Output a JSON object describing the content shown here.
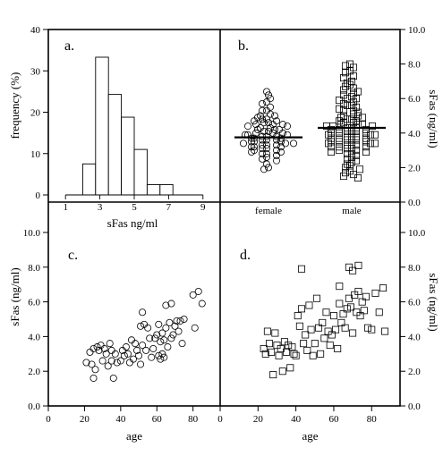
{
  "chart_data": [
    {
      "type": "bar",
      "panel_label": "a.",
      "xlabel": "sFas ng/ml",
      "ylabel": "frequency (%)",
      "xlim": [
        0,
        10
      ],
      "ylim": [
        0,
        40
      ],
      "xticks": [
        1,
        3,
        5,
        7,
        9
      ],
      "xtick_labels": [
        "1",
        "3",
        "5",
        "7",
        "9"
      ],
      "yticks": [
        0,
        10,
        20,
        30,
        40
      ],
      "ytick_labels": [
        "0",
        "10",
        "20",
        "30",
        "40"
      ],
      "bins": [
        [
          2,
          2.75
        ],
        [
          2.75,
          3.5
        ],
        [
          3.5,
          4.25
        ],
        [
          4.25,
          5
        ],
        [
          5,
          5.75
        ],
        [
          5.75,
          6.5
        ],
        [
          6.5,
          7.25
        ],
        [
          7.25,
          8
        ]
      ],
      "values": [
        7.5,
        33.3,
        24.3,
        18.8,
        11.0,
        2.5,
        2.5,
        0
      ],
      "grid": false
    },
    {
      "type": "scatter",
      "panel_label": "b.",
      "ylabel": "sFas (ng/ml)",
      "ylim": [
        0,
        10
      ],
      "yticks": [
        0,
        2,
        4,
        6,
        8,
        10
      ],
      "ytick_labels": [
        "0.0",
        "2.0",
        "4.0",
        "6.0",
        "8.0",
        "10.0"
      ],
      "categories": [
        "female",
        "male"
      ],
      "series": [
        {
          "category": "female",
          "marker": "circle",
          "mean": 3.75,
          "values": [
            6.4,
            6.2,
            6.0,
            5.8,
            5.7,
            5.5,
            5.3,
            5.3,
            5.1,
            5.0,
            5.0,
            4.9,
            4.8,
            4.8,
            4.7,
            4.7,
            4.6,
            4.6,
            4.5,
            4.5,
            4.5,
            4.4,
            4.4,
            4.3,
            4.3,
            4.2,
            4.2,
            4.2,
            4.1,
            4.1,
            4.0,
            4.0,
            4.0,
            3.9,
            3.9,
            3.9,
            3.8,
            3.8,
            3.8,
            3.7,
            3.7,
            3.7,
            3.6,
            3.6,
            3.6,
            3.5,
            3.5,
            3.5,
            3.4,
            3.4,
            3.4,
            3.3,
            3.3,
            3.3,
            3.2,
            3.2,
            3.2,
            3.1,
            3.1,
            3.0,
            3.0,
            2.9,
            2.9,
            2.8,
            2.8,
            2.7,
            2.6,
            2.5,
            2.4,
            2.2,
            2.0,
            1.9
          ]
        },
        {
          "category": "male",
          "marker": "square",
          "mean": 4.3,
          "values": [
            8.0,
            7.9,
            7.8,
            7.6,
            7.5,
            7.3,
            7.2,
            7.0,
            6.9,
            6.8,
            6.7,
            6.6,
            6.5,
            6.4,
            6.3,
            6.2,
            6.1,
            6.0,
            6.0,
            5.9,
            5.8,
            5.7,
            5.6,
            5.6,
            5.5,
            5.4,
            5.3,
            5.3,
            5.2,
            5.1,
            5.0,
            5.0,
            4.9,
            4.9,
            4.8,
            4.8,
            4.7,
            4.7,
            4.6,
            4.6,
            4.5,
            4.5,
            4.5,
            4.4,
            4.4,
            4.4,
            4.3,
            4.3,
            4.3,
            4.2,
            4.2,
            4.2,
            4.1,
            4.1,
            4.1,
            4.0,
            4.0,
            4.0,
            3.9,
            3.9,
            3.9,
            3.8,
            3.8,
            3.8,
            3.7,
            3.7,
            3.7,
            3.6,
            3.6,
            3.6,
            3.5,
            3.5,
            3.5,
            3.4,
            3.4,
            3.4,
            3.3,
            3.3,
            3.3,
            3.2,
            3.2,
            3.2,
            3.1,
            3.1,
            3.0,
            3.0,
            2.9,
            2.9,
            2.8,
            2.8,
            2.7,
            2.6,
            2.5,
            2.4,
            2.3,
            2.2,
            2.1,
            2.0,
            1.9,
            1.8,
            1.7,
            1.6,
            1.5,
            1.4
          ]
        }
      ],
      "grid": false
    },
    {
      "type": "scatter",
      "panel_label": "c.",
      "xlabel": "age",
      "ylabel": "sFas (ng/ml)",
      "marker": "circle",
      "xlim": [
        0,
        95
      ],
      "ylim": [
        0,
        10
      ],
      "xticks": [
        0,
        20,
        40,
        60,
        80
      ],
      "xtick_labels": [
        "0",
        "20",
        "40",
        "60",
        "80"
      ],
      "yticks": [
        0,
        2,
        4,
        6,
        8,
        10
      ],
      "ytick_labels": [
        "0.0",
        "2.0",
        "4.0",
        "6.0",
        "8.0",
        "10.0"
      ],
      "points": [
        [
          21,
          2.5
        ],
        [
          23,
          3.1
        ],
        [
          24,
          2.4
        ],
        [
          25,
          3.3
        ],
        [
          25,
          1.6
        ],
        [
          26,
          2.1
        ],
        [
          27,
          3.4
        ],
        [
          28,
          3.2
        ],
        [
          29,
          3.5
        ],
        [
          30,
          2.6
        ],
        [
          31,
          3.3
        ],
        [
          32,
          3.0
        ],
        [
          33,
          2.3
        ],
        [
          34,
          3.6
        ],
        [
          35,
          3.2
        ],
        [
          35,
          2.6
        ],
        [
          36,
          1.6
        ],
        [
          37,
          3.0
        ],
        [
          38,
          2.5
        ],
        [
          40,
          2.6
        ],
        [
          41,
          3.2
        ],
        [
          42,
          2.9
        ],
        [
          43,
          3.4
        ],
        [
          44,
          3.0
        ],
        [
          45,
          2.5
        ],
        [
          46,
          3.8
        ],
        [
          47,
          2.7
        ],
        [
          48,
          3.6
        ],
        [
          49,
          3.2
        ],
        [
          50,
          2.9
        ],
        [
          51,
          2.4
        ],
        [
          51,
          4.6
        ],
        [
          52,
          3.5
        ],
        [
          52,
          5.4
        ],
        [
          53,
          4.7
        ],
        [
          54,
          3.2
        ],
        [
          55,
          4.5
        ],
        [
          56,
          3.9
        ],
        [
          57,
          2.8
        ],
        [
          58,
          3.3
        ],
        [
          59,
          3.9
        ],
        [
          60,
          4.1
        ],
        [
          61,
          2.9
        ],
        [
          61,
          4.7
        ],
        [
          62,
          3.7
        ],
        [
          62,
          2.7
        ],
        [
          63,
          4.2
        ],
        [
          63,
          3.0
        ],
        [
          64,
          3.8
        ],
        [
          64,
          2.8
        ],
        [
          65,
          4.5
        ],
        [
          65,
          5.8
        ],
        [
          66,
          3.4
        ],
        [
          67,
          4.8
        ],
        [
          68,
          3.9
        ],
        [
          68,
          5.9
        ],
        [
          69,
          4.1
        ],
        [
          70,
          4.6
        ],
        [
          71,
          4.9
        ],
        [
          72,
          4.3
        ],
        [
          73,
          4.9
        ],
        [
          74,
          3.6
        ],
        [
          75,
          5.0
        ],
        [
          80,
          6.4
        ],
        [
          81,
          4.5
        ],
        [
          83,
          6.6
        ],
        [
          85,
          5.9
        ]
      ],
      "grid": false
    },
    {
      "type": "scatter",
      "panel_label": "d.",
      "xlabel": "age",
      "ylabel": "sFas (ng/ml)",
      "marker": "square",
      "xlim": [
        0,
        95
      ],
      "ylim": [
        0,
        10
      ],
      "xticks": [
        0,
        20,
        40,
        60,
        80
      ],
      "xtick_labels": [
        "0",
        "20",
        "40",
        "60",
        "80"
      ],
      "yticks": [
        0,
        2,
        4,
        6,
        8,
        10
      ],
      "ytick_labels": [
        "0.0",
        "2.0",
        "4.0",
        "6.0",
        "8.0",
        "10.0"
      ],
      "points": [
        [
          23,
          3.3
        ],
        [
          24,
          3.0
        ],
        [
          25,
          4.3
        ],
        [
          26,
          3.6
        ],
        [
          27,
          3.1
        ],
        [
          28,
          1.8
        ],
        [
          29,
          4.2
        ],
        [
          30,
          3.5
        ],
        [
          31,
          2.9
        ],
        [
          32,
          3.3
        ],
        [
          33,
          2.0
        ],
        [
          34,
          3.7
        ],
        [
          35,
          3.1
        ],
        [
          36,
          3.5
        ],
        [
          37,
          2.2
        ],
        [
          38,
          3.4
        ],
        [
          39,
          3.0
        ],
        [
          40,
          2.9
        ],
        [
          41,
          5.2
        ],
        [
          42,
          4.6
        ],
        [
          43,
          7.9
        ],
        [
          43,
          5.6
        ],
        [
          44,
          3.6
        ],
        [
          45,
          4.1
        ],
        [
          46,
          3.2
        ],
        [
          47,
          5.8
        ],
        [
          48,
          4.4
        ],
        [
          49,
          2.9
        ],
        [
          50,
          3.6
        ],
        [
          51,
          6.2
        ],
        [
          52,
          4.5
        ],
        [
          53,
          3.0
        ],
        [
          54,
          4.8
        ],
        [
          55,
          3.9
        ],
        [
          56,
          5.4
        ],
        [
          57,
          4.3
        ],
        [
          58,
          3.5
        ],
        [
          59,
          4.1
        ],
        [
          60,
          5.2
        ],
        [
          61,
          4.4
        ],
        [
          62,
          3.3
        ],
        [
          63,
          5.9
        ],
        [
          63,
          6.9
        ],
        [
          64,
          4.8
        ],
        [
          65,
          5.3
        ],
        [
          66,
          4.5
        ],
        [
          67,
          5.6
        ],
        [
          68,
          8.0
        ],
        [
          68,
          6.2
        ],
        [
          69,
          5.7
        ],
        [
          70,
          7.8
        ],
        [
          70,
          4.2
        ],
        [
          71,
          6.4
        ],
        [
          72,
          5.4
        ],
        [
          73,
          6.6
        ],
        [
          73,
          8.1
        ],
        [
          74,
          5.2
        ],
        [
          75,
          6.0
        ],
        [
          76,
          5.5
        ],
        [
          77,
          6.3
        ],
        [
          78,
          4.5
        ],
        [
          80,
          4.4
        ],
        [
          82,
          6.5
        ],
        [
          84,
          5.4
        ],
        [
          86,
          6.8
        ],
        [
          87,
          4.3
        ]
      ],
      "grid": false
    }
  ]
}
